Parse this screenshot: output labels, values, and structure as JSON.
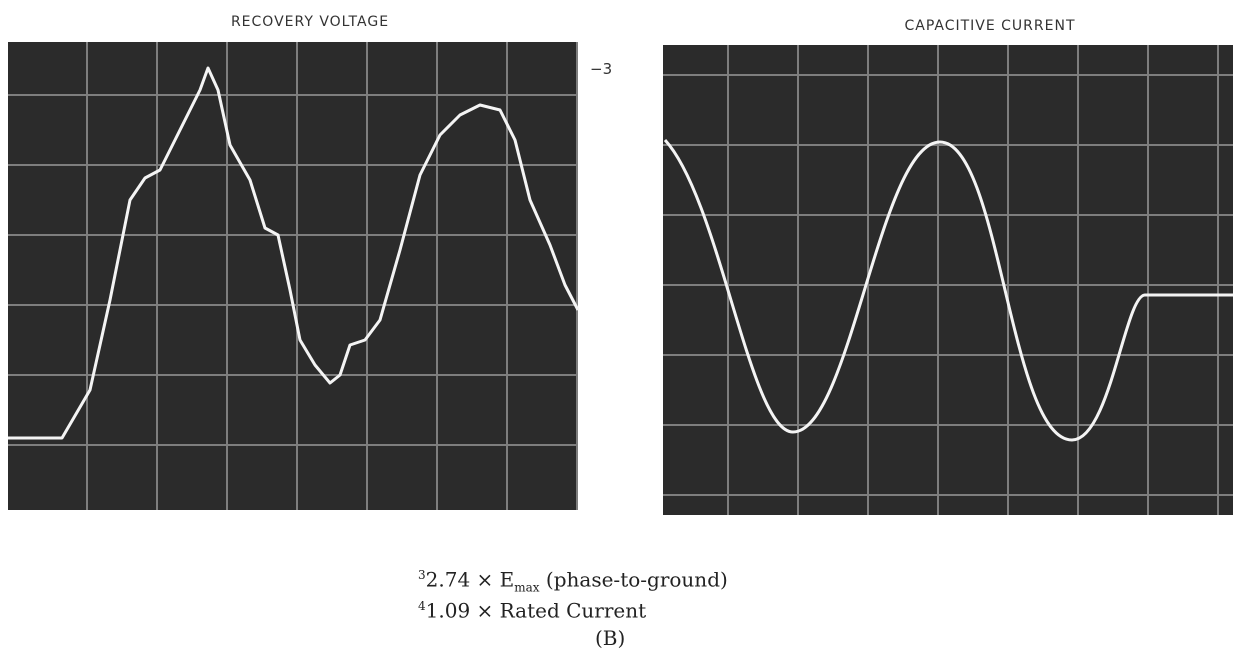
{
  "panels": [
    {
      "title": "RECOVERY VOLTAGE",
      "marker": "−3"
    },
    {
      "title": "CAPACITIVE CURRENT"
    }
  ],
  "caption": {
    "lines": [
      {
        "note": "3",
        "text": "2.74 × E",
        "subscript": "max",
        "suffix": " (phase-to-ground)"
      },
      {
        "note": "4",
        "text": "1.09 × Rated Current"
      }
    ],
    "label": "(B)"
  }
}
